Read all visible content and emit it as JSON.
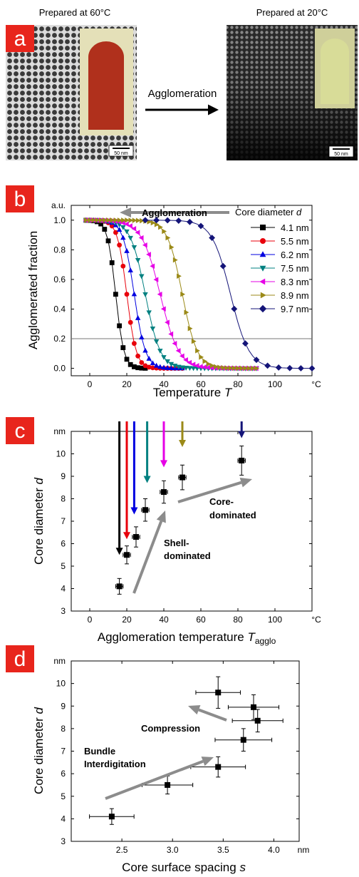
{
  "panel_a": {
    "letter": "a",
    "left_caption": "Prepared at 60°C",
    "right_caption": "Prepared at 20°C",
    "arrow_label": "Agglomeration",
    "scale_left": "50 nm",
    "scale_right": "50 nm"
  },
  "colors": {
    "panel_tag": "#e8251c",
    "gray_arrow": "#8c8c8c",
    "vial_red": "#b0301c",
    "vial_yellow": "#d8dc98"
  },
  "chart_data": [
    {
      "panel": "b",
      "type": "line",
      "xlabel": "Temperature",
      "xlabel_var": "T",
      "ylabel": "Agglomerated fraction",
      "x_unit": "°C",
      "y_unit": "a.u.",
      "xlim": [
        -10,
        120
      ],
      "ylim": [
        -0.05,
        1.1
      ],
      "xticks": [
        0,
        20,
        40,
        60,
        80,
        100
      ],
      "yticks": [
        0.0,
        0.2,
        0.4,
        0.6,
        0.8,
        1.0
      ],
      "ytick_labels": [
        "0.0",
        "0.2",
        "0.4",
        "0.6",
        "0.8",
        "1.0"
      ],
      "hline": 0.2,
      "annotation": "Agglomeration",
      "legend_title": "Core diameter",
      "legend_title_var": "d",
      "legend_position": "top-right",
      "series": [
        {
          "name": "4.1 nm",
          "color": "#000000",
          "marker": "square",
          "x0": 14,
          "w": 2.2,
          "t_max": 30
        },
        {
          "name": "5.5 nm",
          "color": "#e8000b",
          "marker": "circle",
          "x0": 20,
          "w": 2.5,
          "t_max": 50
        },
        {
          "name": "6.2 nm",
          "color": "#0000e0",
          "marker": "triangle-up",
          "x0": 24,
          "w": 3.0,
          "t_max": 50
        },
        {
          "name": "7.5 nm",
          "color": "#008080",
          "marker": "triangle-down",
          "x0": 30,
          "w": 4.0,
          "t_max": 90
        },
        {
          "name": "8.3 nm",
          "color": "#e600e6",
          "marker": "triangle-left",
          "x0": 38,
          "w": 5.0,
          "t_max": 90
        },
        {
          "name": "8.9 nm",
          "color": "#9b8a18",
          "marker": "triangle-right",
          "x0": 50,
          "w": 4.0,
          "t_max": 90
        },
        {
          "name": "9.7 nm",
          "color": "#141478",
          "marker": "diamond",
          "x0": 76,
          "w": 5.0,
          "t_max": 120
        }
      ]
    },
    {
      "panel": "c",
      "type": "scatter",
      "xlabel": "Agglomeration temperature",
      "xlabel_var": "T",
      "xlabel_sub": "agglo",
      "ylabel": "Core diameter",
      "ylabel_var": "d",
      "x_unit": "°C",
      "y_unit": "nm",
      "xlim": [
        -10,
        120
      ],
      "ylim": [
        3,
        11
      ],
      "xticks": [
        0,
        20,
        40,
        60,
        80,
        100
      ],
      "yticks": [
        3,
        4,
        5,
        6,
        7,
        8,
        9,
        10
      ],
      "points": [
        {
          "x": 16,
          "y": 4.1,
          "xerr": 2,
          "yerr": 0.35
        },
        {
          "x": 20,
          "y": 5.5,
          "xerr": 2,
          "yerr": 0.4
        },
        {
          "x": 25,
          "y": 6.3,
          "xerr": 2,
          "yerr": 0.45
        },
        {
          "x": 30,
          "y": 7.5,
          "xerr": 2,
          "yerr": 0.5
        },
        {
          "x": 40,
          "y": 8.3,
          "xerr": 2,
          "yerr": 0.5
        },
        {
          "x": 50,
          "y": 8.95,
          "xerr": 2,
          "yerr": 0.55
        },
        {
          "x": 82,
          "y": 9.7,
          "xerr": 2,
          "yerr": 0.65
        }
      ],
      "arrows": [
        {
          "x": 16,
          "y_end": 5.5,
          "color": "#000000"
        },
        {
          "x": 20,
          "y_end": 6.2,
          "color": "#e8000b"
        },
        {
          "x": 24,
          "y_end": 7.3,
          "color": "#0000e0"
        },
        {
          "x": 31,
          "y_end": 8.7,
          "color": "#008080"
        },
        {
          "x": 40,
          "y_end": 9.4,
          "color": "#e600e6"
        },
        {
          "x": 50,
          "y_end": 10.3,
          "color": "#9b8a18"
        },
        {
          "x": 82,
          "y_end": 10.7,
          "color": "#141478"
        }
      ],
      "annotations": [
        {
          "lines": [
            "Shell-",
            "dominated"
          ]
        },
        {
          "lines": [
            "Core-",
            "dominated"
          ]
        }
      ]
    },
    {
      "panel": "d",
      "type": "scatter",
      "xlabel": "Core surface spacing",
      "xlabel_var": "s",
      "ylabel": "Core diameter",
      "ylabel_var": "d",
      "x_unit": "nm",
      "y_unit": "nm",
      "xlim": [
        2.0,
        4.25
      ],
      "ylim": [
        3,
        11
      ],
      "xticks": [
        2.5,
        3.0,
        3.5,
        4.0
      ],
      "xtick_labels": [
        "2.5",
        "3.0",
        "3.5",
        "4.0"
      ],
      "yticks": [
        3,
        4,
        5,
        6,
        7,
        8,
        9,
        10
      ],
      "points": [
        {
          "x": 2.4,
          "y": 4.1,
          "xerr": 0.22,
          "yerr": 0.35
        },
        {
          "x": 2.95,
          "y": 5.5,
          "xerr": 0.25,
          "yerr": 0.4
        },
        {
          "x": 3.45,
          "y": 6.3,
          "xerr": 0.27,
          "yerr": 0.45
        },
        {
          "x": 3.7,
          "y": 7.5,
          "xerr": 0.28,
          "yerr": 0.5
        },
        {
          "x": 3.84,
          "y": 8.35,
          "xerr": 0.25,
          "yerr": 0.5
        },
        {
          "x": 3.8,
          "y": 8.95,
          "xerr": 0.25,
          "yerr": 0.55
        },
        {
          "x": 3.45,
          "y": 9.6,
          "xerr": 0.22,
          "yerr": 0.7
        }
      ],
      "annotations": [
        {
          "lines": [
            "Bundle",
            "Interdigitation"
          ]
        },
        {
          "lines": [
            "Compression"
          ]
        }
      ]
    }
  ]
}
